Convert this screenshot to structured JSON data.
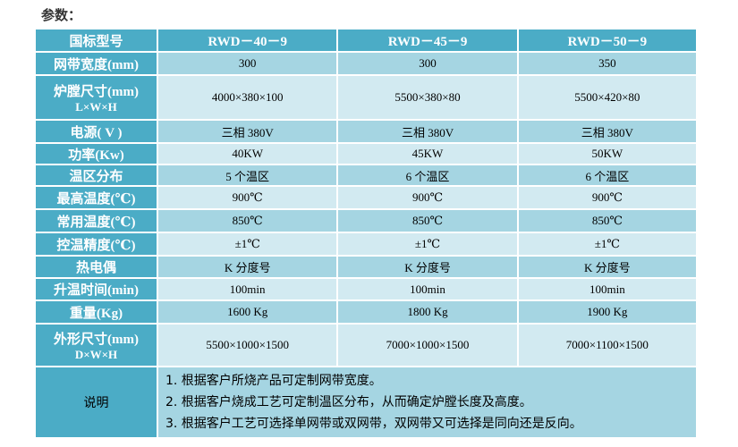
{
  "title": "参数：",
  "header": {
    "label": "国标型号",
    "models": [
      "RWD－40－9",
      "RWD－45－9",
      "RWD－50－9"
    ]
  },
  "rows": [
    {
      "label": "网带宽度(mm)",
      "values": [
        "300",
        "300",
        "350"
      ]
    },
    {
      "label": "炉膛尺寸(mm)",
      "sublabel": "L×W×H",
      "values": [
        "4000×380×100",
        "5500×380×80",
        "5500×420×80"
      ]
    },
    {
      "label": "电源( V )",
      "values": [
        "三相 380V",
        "三相 380V",
        "三相 380V"
      ]
    },
    {
      "label": "功率(Kw)",
      "values": [
        "40KW",
        "45KW",
        "50KW"
      ]
    },
    {
      "label": "温区分布",
      "values": [
        "5 个温区",
        "6 个温区",
        "6 个温区"
      ]
    },
    {
      "label": "最高温度(℃)",
      "values": [
        "900℃",
        "900℃",
        "900℃"
      ]
    },
    {
      "label": "常用温度(℃)",
      "values": [
        "850℃",
        "850℃",
        "850℃"
      ]
    },
    {
      "label": "控温精度(℃)",
      "values": [
        "±1℃",
        "±1℃",
        "±1℃"
      ]
    },
    {
      "label": "热电偶",
      "values": [
        "K 分度号",
        "K 分度号",
        "K 分度号"
      ]
    },
    {
      "label": "升温时间(min)",
      "values": [
        "100min",
        "100min",
        "100min"
      ]
    },
    {
      "label": "重量(Kg)",
      "values": [
        "1600 Kg",
        "1800 Kg",
        "1900 Kg"
      ]
    },
    {
      "label": "外形尺寸(mm)",
      "sublabel": "D×W×H",
      "values": [
        "5500×1000×1500",
        "7000×1000×1500",
        "7000×1100×1500"
      ]
    }
  ],
  "notes": {
    "label": "说明",
    "items": [
      "1.  根据客户所烧产品可定制网带宽度。",
      "2.  根据客户烧成工艺可定制温区分布，从而确定炉膛长度及高度。",
      "3.  根据客户工艺可选择单网带或双网带，双网带又可选择是同向还是反向。"
    ]
  }
}
